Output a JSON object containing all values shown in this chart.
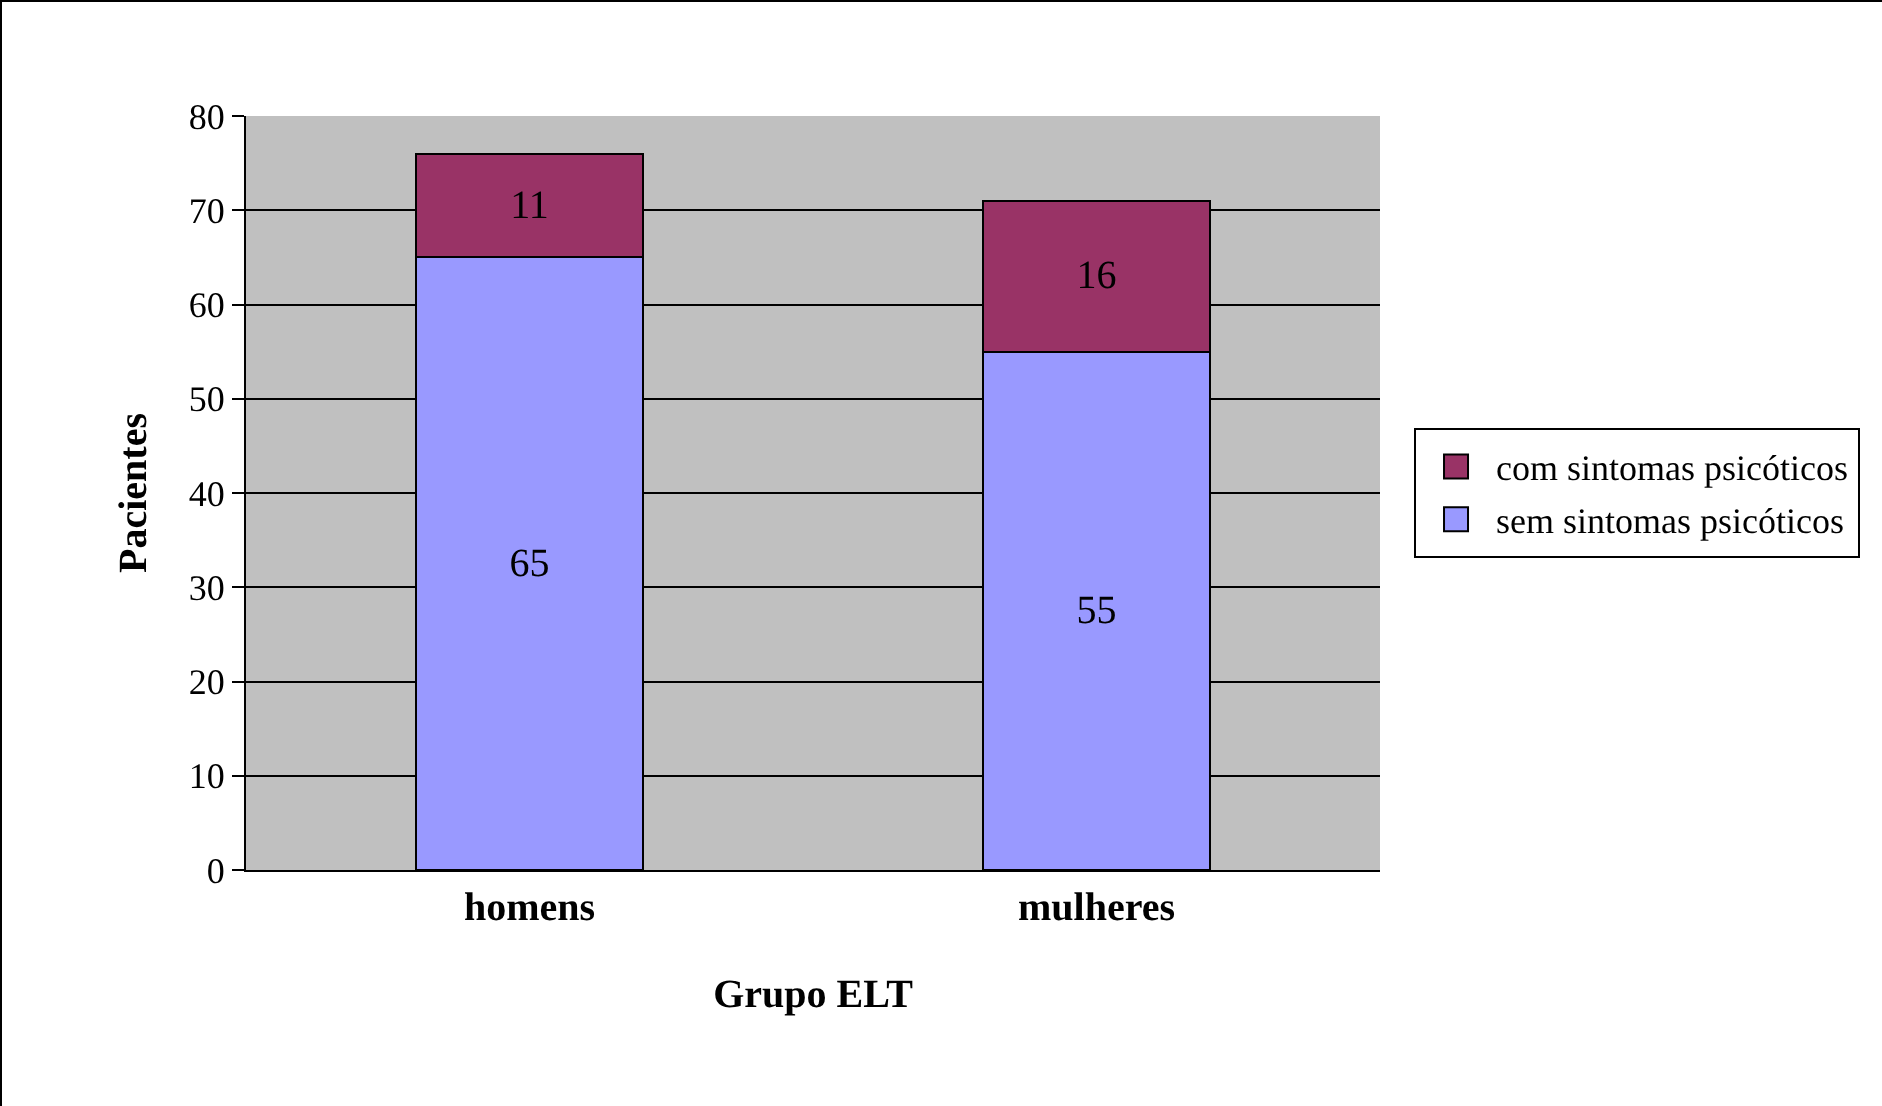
{
  "chart_data": {
    "type": "bar",
    "stacked": true,
    "xlabel": "Grupo ELT",
    "ylabel": "Pacientes",
    "categories": [
      "homens",
      "mulheres"
    ],
    "series": [
      {
        "name": "sem sintomas psicóticos",
        "color": "#9999ff",
        "values": [
          65,
          55
        ]
      },
      {
        "name": "com sintomas psicóticos",
        "color": "#993366",
        "values": [
          11,
          16
        ]
      }
    ],
    "ylim": [
      0,
      80
    ],
    "yticks": [
      0,
      10,
      20,
      30,
      40,
      50,
      60,
      70,
      80
    ],
    "grid": "y",
    "legend": "right",
    "data_labels": true
  }
}
